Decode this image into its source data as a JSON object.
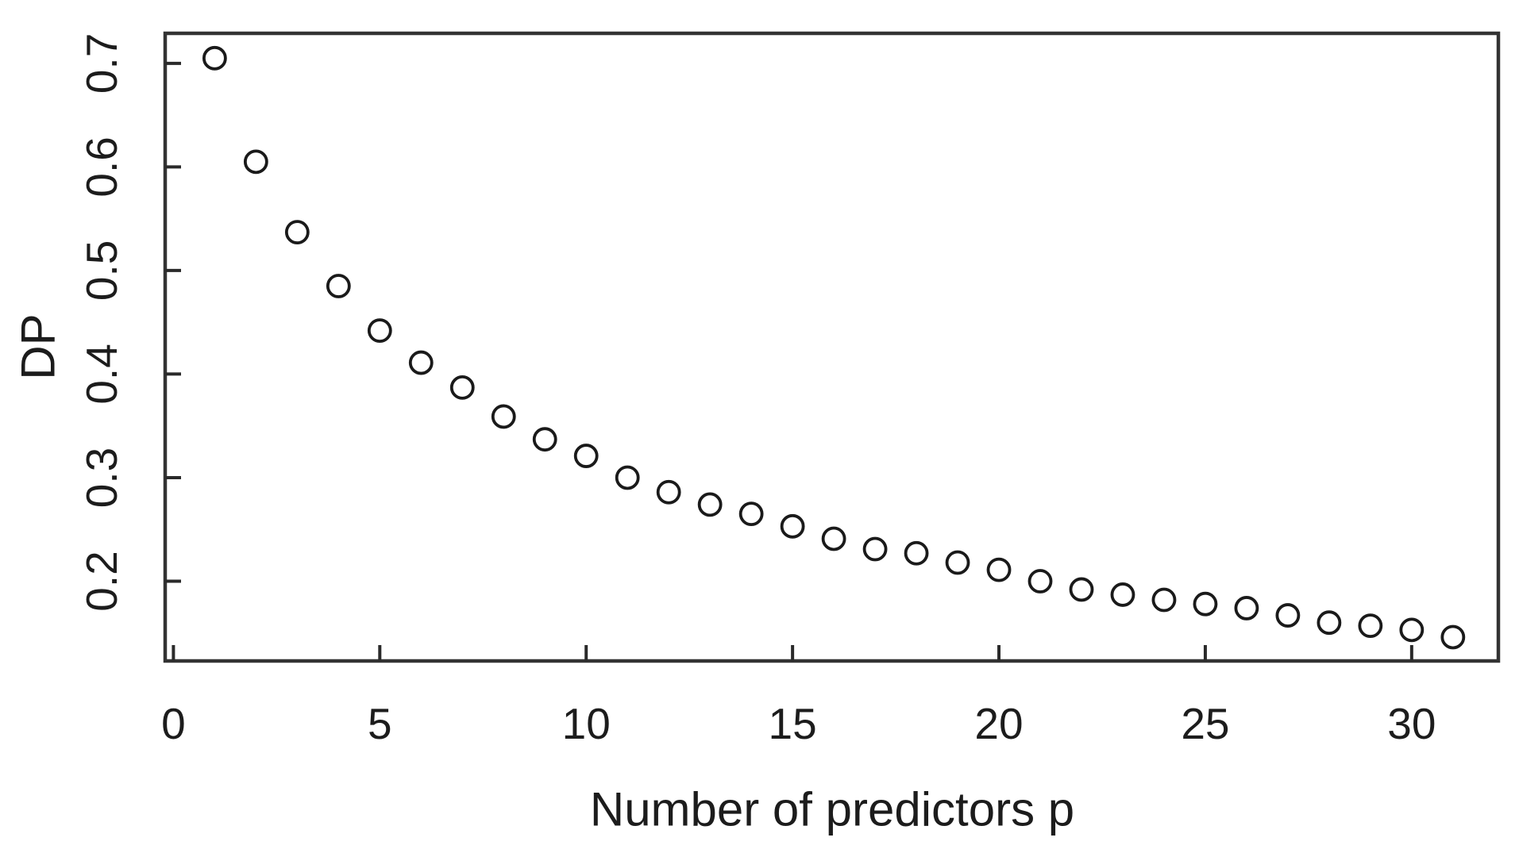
{
  "figure": {
    "background": "#ffffff",
    "frame_color": "#333333",
    "tick_color": "#2a2a2a",
    "text_color": "#1c1c1c",
    "point_color": "#1a1a1a"
  },
  "chart_data": {
    "type": "scatter",
    "title": "",
    "xlabel": "Number of predictors p",
    "ylabel": "DP",
    "marker": "open-circle",
    "grid": false,
    "legend": null,
    "xlim": [
      -0.2,
      32.1
    ],
    "ylim": [
      0.123,
      0.729
    ],
    "x_ticks": [
      0,
      5,
      10,
      15,
      20,
      25,
      30
    ],
    "y_ticks": [
      0.2,
      0.3,
      0.4,
      0.5,
      0.6,
      0.7
    ],
    "x": [
      1,
      2,
      3,
      4,
      5,
      6,
      7,
      8,
      9,
      10,
      11,
      12,
      13,
      14,
      15,
      16,
      17,
      18,
      19,
      20,
      21,
      22,
      23,
      24,
      25,
      26,
      27,
      28,
      29,
      30,
      31
    ],
    "y": [
      0.705,
      0.605,
      0.537,
      0.485,
      0.442,
      0.411,
      0.387,
      0.359,
      0.337,
      0.321,
      0.3,
      0.286,
      0.274,
      0.265,
      0.253,
      0.241,
      0.231,
      0.227,
      0.218,
      0.211,
      0.2,
      0.192,
      0.187,
      0.182,
      0.178,
      0.174,
      0.167,
      0.16,
      0.157,
      0.153,
      0.146
    ]
  }
}
